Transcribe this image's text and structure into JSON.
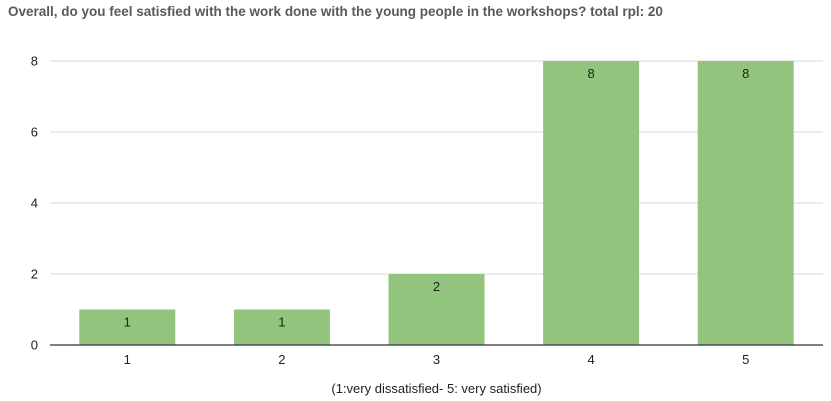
{
  "chart_data": {
    "type": "bar",
    "title": "Overall, do you feel satisfied with the work done with the young people in the workshops? total rpl: 20",
    "categories": [
      "1",
      "2",
      "3",
      "4",
      "5"
    ],
    "values": [
      1,
      1,
      2,
      8,
      8
    ],
    "data_labels": [
      "1",
      "1",
      "2",
      "8",
      "8"
    ],
    "xlabel": "(1:very dissatisfied- 5: very satisfied)",
    "ylabel": "",
    "ylim": [
      0,
      8
    ],
    "yticks": [
      0,
      2,
      4,
      6,
      8
    ],
    "grid": true,
    "legend": "none",
    "colors": {
      "bar": "#93c47d",
      "grid": "#d9d9d9",
      "axis": "#333333"
    }
  }
}
